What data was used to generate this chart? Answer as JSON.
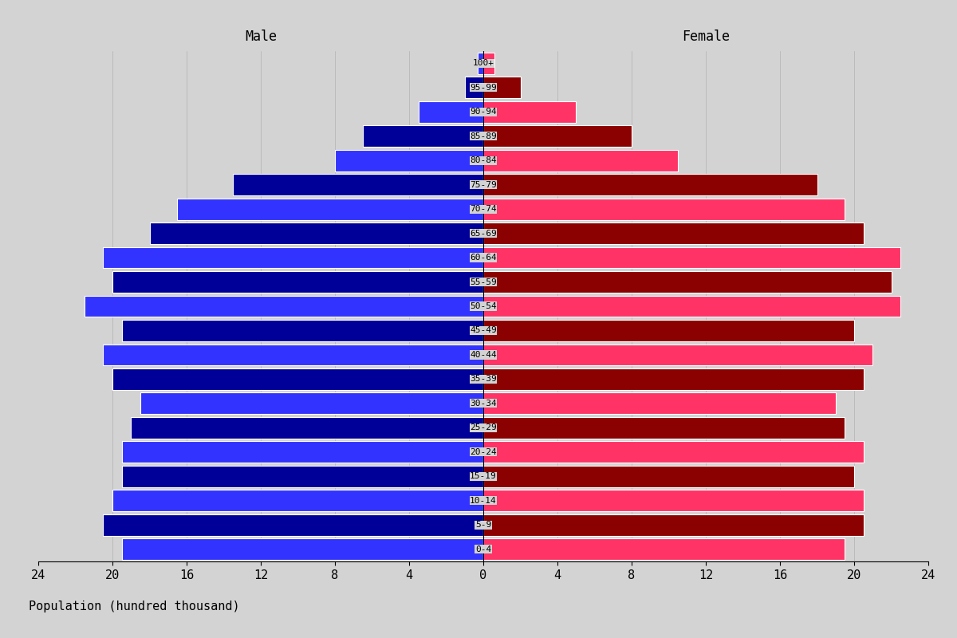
{
  "age_groups": [
    "0-4",
    "5-9",
    "10-14",
    "15-19",
    "20-24",
    "25-29",
    "30-34",
    "35-39",
    "40-44",
    "45-49",
    "50-54",
    "55-59",
    "60-64",
    "65-69",
    "70-74",
    "75-79",
    "80-84",
    "85-89",
    "90-94",
    "95-99",
    "100+"
  ],
  "male_values": [
    19.5,
    20.5,
    20.0,
    19.5,
    19.5,
    19.0,
    18.5,
    20.0,
    20.5,
    19.5,
    21.5,
    20.0,
    20.5,
    18.0,
    16.5,
    13.5,
    8.0,
    6.5,
    3.5,
    1.0,
    0.3
  ],
  "female_values": [
    19.5,
    20.5,
    20.5,
    20.0,
    20.5,
    19.5,
    19.0,
    20.5,
    21.0,
    20.0,
    22.5,
    22.0,
    22.5,
    20.5,
    19.5,
    18.0,
    10.5,
    8.0,
    5.0,
    2.0,
    0.6
  ],
  "male_color_a": "#3333FF",
  "male_color_b": "#000099",
  "female_color_a": "#FF3366",
  "female_color_b": "#8B0000",
  "background_color": "#D3D3D3",
  "title_male": "Male",
  "title_female": "Female",
  "xlabel": "Population (hundred thousand)",
  "xlim": 24,
  "xticks": [
    0,
    4,
    8,
    12,
    16,
    20,
    24
  ]
}
